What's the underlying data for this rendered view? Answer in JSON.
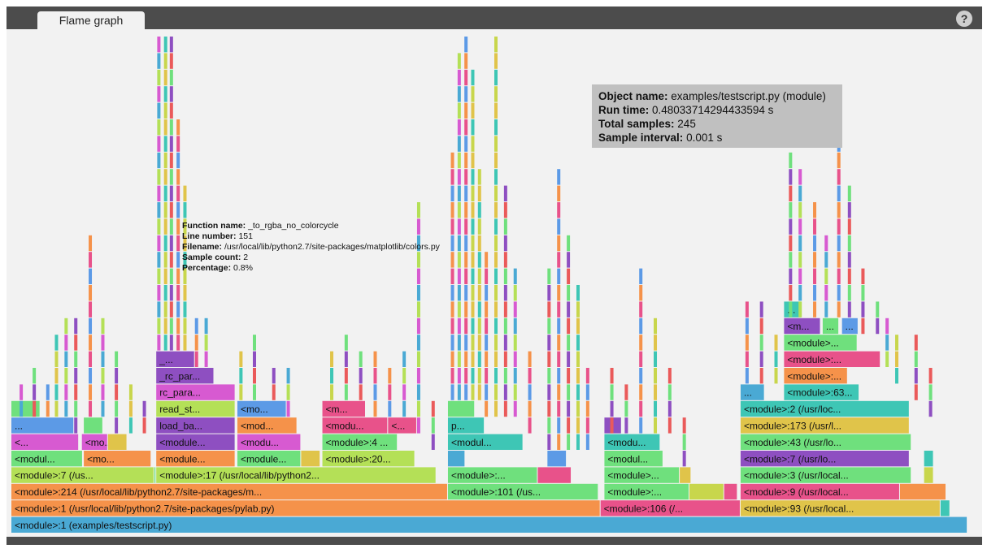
{
  "tab": {
    "label": "Flame graph"
  },
  "help": {
    "label": "?"
  },
  "info": {
    "object_name_label": "Object name:",
    "object_name": "examples/testscript.py (module)",
    "run_time_label": "Run time:",
    "run_time": "0.48033714294433594 s",
    "total_samples_label": "Total samples:",
    "total_samples": "245",
    "sample_interval_label": "Sample interval:",
    "sample_interval": "0.001 s"
  },
  "tooltip": {
    "function_name_label": "Function name:",
    "function_name": "_to_rgba_no_colorcycle",
    "line_number_label": "Line number:",
    "line_number": "151",
    "filename_label": "Filename:",
    "filename": "/usr/local/lib/python2.7/site-packages/matplotlib/colors.py",
    "sample_count_label": "Sample count:",
    "sample_count": "2",
    "percentage_label": "Percentage:",
    "percentage": "0.8%"
  },
  "colors": {
    "blue": "#4aa9d4",
    "orange": "#f5924a",
    "green": "#6fe07d",
    "yellow": "#e0c44a",
    "lime": "#b4e057",
    "pink": "#e8528a",
    "purple": "#8e4fc1",
    "teal": "#3ec6b5",
    "magenta": "#d75ad1",
    "sky": "#5c9ae6",
    "red": "#ea5a5a",
    "olive": "#c8d64c"
  },
  "frames": [
    {
      "level": 0,
      "x0": 0.0,
      "x1": 0.99,
      "color": "blue",
      "label": "<module>:1 (examples/testscript.py)"
    },
    {
      "level": 1,
      "x0": 0.0,
      "x1": 0.61,
      "color": "orange",
      "label": "<module>:1 (/usr/local/lib/python2.7/site-packages/pylab.py)"
    },
    {
      "level": 1,
      "x0": 0.61,
      "x1": 0.755,
      "color": "pink",
      "label": "<module>:106 (/..."
    },
    {
      "level": 1,
      "x0": 0.755,
      "x1": 0.962,
      "color": "yellow",
      "label": "<module>:93 (/usr/local..."
    },
    {
      "level": 1,
      "x0": 0.962,
      "x1": 0.972,
      "color": "teal",
      "label": ""
    },
    {
      "level": 2,
      "x0": 0.0,
      "x1": 0.452,
      "color": "orange",
      "label": "<module>:214 (/usr/local/lib/python2.7/site-packages/m..."
    },
    {
      "level": 2,
      "x0": 0.452,
      "x1": 0.608,
      "color": "green",
      "label": "<module>:101 (/us..."
    },
    {
      "level": 2,
      "x0": 0.614,
      "x1": 0.702,
      "color": "green",
      "label": "<module>:..."
    },
    {
      "level": 2,
      "x0": 0.702,
      "x1": 0.738,
      "color": "olive",
      "label": ""
    },
    {
      "level": 2,
      "x0": 0.738,
      "x1": 0.752,
      "color": "pink",
      "label": ""
    },
    {
      "level": 2,
      "x0": 0.755,
      "x1": 0.92,
      "color": "pink",
      "label": "<module>:9 (/usr/local..."
    },
    {
      "level": 2,
      "x0": 0.92,
      "x1": 0.968,
      "color": "orange",
      "label": ""
    },
    {
      "level": 3,
      "x0": 0.0,
      "x1": 0.148,
      "color": "lime",
      "label": "<module>:7 (/us..."
    },
    {
      "level": 3,
      "x0": 0.148,
      "x1": 0.15,
      "color": "green",
      "label": ""
    },
    {
      "level": 3,
      "x0": 0.15,
      "x1": 0.44,
      "color": "lime",
      "label": "<module>:17 (/usr/local/lib/python2..."
    },
    {
      "level": 3,
      "x0": 0.452,
      "x1": 0.545,
      "color": "green",
      "label": "<module>:..."
    },
    {
      "level": 3,
      "x0": 0.545,
      "x1": 0.58,
      "color": "pink",
      "label": ""
    },
    {
      "level": 3,
      "x0": 0.614,
      "x1": 0.692,
      "color": "green",
      "label": "<module>..."
    },
    {
      "level": 3,
      "x0": 0.692,
      "x1": 0.704,
      "color": "yellow",
      "label": ""
    },
    {
      "level": 3,
      "x0": 0.755,
      "x1": 0.932,
      "color": "green",
      "label": "<module>:3 (/usr/local..."
    },
    {
      "level": 3,
      "x0": 0.945,
      "x1": 0.955,
      "color": "olive",
      "label": ""
    },
    {
      "level": 4,
      "x0": 0.0,
      "x1": 0.074,
      "color": "green",
      "label": "<modul..."
    },
    {
      "level": 4,
      "x0": 0.075,
      "x1": 0.145,
      "color": "orange",
      "label": "<mo..."
    },
    {
      "level": 4,
      "x0": 0.15,
      "x1": 0.232,
      "color": "orange",
      "label": "<module..."
    },
    {
      "level": 4,
      "x0": 0.234,
      "x1": 0.3,
      "color": "green",
      "label": "<module..."
    },
    {
      "level": 4,
      "x0": 0.3,
      "x1": 0.32,
      "color": "yellow",
      "label": ""
    },
    {
      "level": 4,
      "x0": 0.322,
      "x1": 0.418,
      "color": "lime",
      "label": "<module>:20..."
    },
    {
      "level": 4,
      "x0": 0.452,
      "x1": 0.47,
      "color": "blue",
      "label": ""
    },
    {
      "level": 4,
      "x0": 0.555,
      "x1": 0.575,
      "color": "sky",
      "label": ""
    },
    {
      "level": 4,
      "x0": 0.614,
      "x1": 0.675,
      "color": "green",
      "label": "<modul..."
    },
    {
      "level": 4,
      "x0": 0.755,
      "x1": 0.93,
      "color": "purple",
      "label": "<module>:7 (/usr/lo..."
    },
    {
      "level": 4,
      "x0": 0.945,
      "x1": 0.955,
      "color": "teal",
      "label": ""
    },
    {
      "level": 5,
      "x0": 0.0,
      "x1": 0.07,
      "color": "magenta",
      "label": "<..."
    },
    {
      "level": 5,
      "x0": 0.073,
      "x1": 0.1,
      "color": "magenta",
      "label": "<mo..."
    },
    {
      "level": 5,
      "x0": 0.1,
      "x1": 0.12,
      "color": "yellow",
      "label": ""
    },
    {
      "level": 5,
      "x0": 0.15,
      "x1": 0.232,
      "color": "purple",
      "label": "<module..."
    },
    {
      "level": 5,
      "x0": 0.234,
      "x1": 0.3,
      "color": "magenta",
      "label": "<modu..."
    },
    {
      "level": 5,
      "x0": 0.322,
      "x1": 0.4,
      "color": "green",
      "label": "<module>:4 ..."
    },
    {
      "level": 5,
      "x0": 0.452,
      "x1": 0.53,
      "color": "teal",
      "label": "<modul..."
    },
    {
      "level": 5,
      "x0": 0.614,
      "x1": 0.672,
      "color": "teal",
      "label": "<modu..."
    },
    {
      "level": 5,
      "x0": 0.755,
      "x1": 0.932,
      "color": "green",
      "label": "<module>:43 (/usr/lo..."
    },
    {
      "level": 6,
      "x0": 0.0,
      "x1": 0.065,
      "color": "sky",
      "label": "..."
    },
    {
      "level": 6,
      "x0": 0.075,
      "x1": 0.095,
      "color": "green",
      "label": ""
    },
    {
      "level": 6,
      "x0": 0.15,
      "x1": 0.232,
      "color": "purple",
      "label": "load_ba..."
    },
    {
      "level": 6,
      "x0": 0.234,
      "x1": 0.296,
      "color": "orange",
      "label": "<mod..."
    },
    {
      "level": 6,
      "x0": 0.322,
      "x1": 0.39,
      "color": "pink",
      "label": "<modu..."
    },
    {
      "level": 6,
      "x0": 0.39,
      "x1": 0.42,
      "color": "pink",
      "label": "<..."
    },
    {
      "level": 6,
      "x0": 0.452,
      "x1": 0.49,
      "color": "teal",
      "label": "p..."
    },
    {
      "level": 6,
      "x0": 0.614,
      "x1": 0.632,
      "color": "purple",
      "label": ""
    },
    {
      "level": 6,
      "x0": 0.755,
      "x1": 0.93,
      "color": "yellow",
      "label": "<module>:173 (/usr/l..."
    },
    {
      "level": 7,
      "x0": 0.0,
      "x1": 0.03,
      "color": "green",
      "label": ""
    },
    {
      "level": 7,
      "x0": 0.15,
      "x1": 0.232,
      "color": "lime",
      "label": "read_st..."
    },
    {
      "level": 7,
      "x0": 0.234,
      "x1": 0.285,
      "color": "sky",
      "label": "<mo..."
    },
    {
      "level": 7,
      "x0": 0.322,
      "x1": 0.367,
      "color": "pink",
      "label": "<m..."
    },
    {
      "level": 7,
      "x0": 0.452,
      "x1": 0.48,
      "color": "green",
      "label": ""
    },
    {
      "level": 7,
      "x0": 0.755,
      "x1": 0.93,
      "color": "teal",
      "label": "<module>:2 (/usr/loc..."
    },
    {
      "level": 8,
      "x0": 0.15,
      "x1": 0.232,
      "color": "magenta",
      "label": "rc_para..."
    },
    {
      "level": 8,
      "x0": 0.755,
      "x1": 0.78,
      "color": "blue",
      "label": "..."
    },
    {
      "level": 8,
      "x0": 0.8,
      "x1": 0.878,
      "color": "teal",
      "label": "<module>:63..."
    },
    {
      "level": 9,
      "x0": 0.15,
      "x1": 0.21,
      "color": "purple",
      "label": "_rc_par..."
    },
    {
      "level": 9,
      "x0": 0.8,
      "x1": 0.866,
      "color": "orange",
      "label": "<module>:..."
    },
    {
      "level": 10,
      "x0": 0.15,
      "x1": 0.19,
      "color": "purple",
      "label": "_..."
    },
    {
      "level": 10,
      "x0": 0.8,
      "x1": 0.9,
      "color": "pink",
      "label": "<module>:..."
    },
    {
      "level": 11,
      "x0": 0.8,
      "x1": 0.876,
      "color": "green",
      "label": "<module>..."
    },
    {
      "level": 12,
      "x0": 0.8,
      "x1": 0.838,
      "color": "purple",
      "label": "<m..."
    },
    {
      "level": 12,
      "x0": 0.84,
      "x1": 0.857,
      "color": "green",
      "label": "..."
    },
    {
      "level": 12,
      "x0": 0.86,
      "x1": 0.877,
      "color": "sky",
      "label": "..."
    },
    {
      "level": 13,
      "x0": 0.8,
      "x1": 0.818,
      "color": "teal",
      "label": "..."
    }
  ],
  "towers": [
    {
      "x": 0.0085,
      "base": 7,
      "h": 2
    },
    {
      "x": 0.022,
      "base": 7,
      "h": 3
    },
    {
      "x": 0.036,
      "base": 7,
      "h": 2
    },
    {
      "x": 0.045,
      "base": 7,
      "h": 5
    },
    {
      "x": 0.055,
      "base": 7,
      "h": 6
    },
    {
      "x": 0.065,
      "base": 6,
      "h": 7
    },
    {
      "x": 0.08,
      "base": 7,
      "h": 11
    },
    {
      "x": 0.093,
      "base": 7,
      "h": 6
    },
    {
      "x": 0.107,
      "base": 6,
      "h": 5
    },
    {
      "x": 0.122,
      "base": 6,
      "h": 3
    },
    {
      "x": 0.136,
      "base": 6,
      "h": 2
    },
    {
      "x": 0.151,
      "base": 11,
      "h": 29
    },
    {
      "x": 0.158,
      "base": 11,
      "h": 26
    },
    {
      "x": 0.164,
      "base": 11,
      "h": 26
    },
    {
      "x": 0.171,
      "base": 11,
      "h": 14
    },
    {
      "x": 0.178,
      "base": 11,
      "h": 10
    },
    {
      "x": 0.19,
      "base": 10,
      "h": 3
    },
    {
      "x": 0.2,
      "base": 10,
      "h": 3
    },
    {
      "x": 0.236,
      "base": 8,
      "h": 3
    },
    {
      "x": 0.25,
      "base": 8,
      "h": 4
    },
    {
      "x": 0.27,
      "base": 8,
      "h": 2
    },
    {
      "x": 0.285,
      "base": 7,
      "h": 3
    },
    {
      "x": 0.33,
      "base": 8,
      "h": 3
    },
    {
      "x": 0.345,
      "base": 8,
      "h": 4
    },
    {
      "x": 0.36,
      "base": 8,
      "h": 3
    },
    {
      "x": 0.375,
      "base": 7,
      "h": 4
    },
    {
      "x": 0.39,
      "base": 7,
      "h": 3
    },
    {
      "x": 0.405,
      "base": 7,
      "h": 4
    },
    {
      "x": 0.42,
      "base": 6,
      "h": 14
    },
    {
      "x": 0.435,
      "base": 5,
      "h": 3
    },
    {
      "x": 0.455,
      "base": 8,
      "h": 15
    },
    {
      "x": 0.462,
      "base": 8,
      "h": 21
    },
    {
      "x": 0.469,
      "base": 8,
      "h": 26
    },
    {
      "x": 0.476,
      "base": 8,
      "h": 20
    },
    {
      "x": 0.483,
      "base": 8,
      "h": 14
    },
    {
      "x": 0.49,
      "base": 7,
      "h": 10
    },
    {
      "x": 0.5,
      "base": 7,
      "h": 23
    },
    {
      "x": 0.51,
      "base": 7,
      "h": 14
    },
    {
      "x": 0.52,
      "base": 7,
      "h": 9
    },
    {
      "x": 0.535,
      "base": 6,
      "h": 5
    },
    {
      "x": 0.555,
      "base": 5,
      "h": 11
    },
    {
      "x": 0.565,
      "base": 5,
      "h": 17
    },
    {
      "x": 0.575,
      "base": 5,
      "h": 13
    },
    {
      "x": 0.585,
      "base": 5,
      "h": 10
    },
    {
      "x": 0.595,
      "base": 5,
      "h": 5
    },
    {
      "x": 0.62,
      "base": 6,
      "h": 4
    },
    {
      "x": 0.635,
      "base": 6,
      "h": 3
    },
    {
      "x": 0.65,
      "base": 6,
      "h": 10
    },
    {
      "x": 0.665,
      "base": 6,
      "h": 7
    },
    {
      "x": 0.68,
      "base": 6,
      "h": 4
    },
    {
      "x": 0.695,
      "base": 4,
      "h": 3
    },
    {
      "x": 0.76,
      "base": 9,
      "h": 5
    },
    {
      "x": 0.775,
      "base": 9,
      "h": 5
    },
    {
      "x": 0.79,
      "base": 9,
      "h": 3
    },
    {
      "x": 0.805,
      "base": 13,
      "h": 10
    },
    {
      "x": 0.815,
      "base": 13,
      "h": 9
    },
    {
      "x": 0.83,
      "base": 13,
      "h": 7
    },
    {
      "x": 0.842,
      "base": 13,
      "h": 5
    },
    {
      "x": 0.855,
      "base": 13,
      "h": 13
    },
    {
      "x": 0.866,
      "base": 13,
      "h": 8
    },
    {
      "x": 0.88,
      "base": 12,
      "h": 4
    },
    {
      "x": 0.895,
      "base": 12,
      "h": 2
    },
    {
      "x": 0.905,
      "base": 10,
      "h": 3
    },
    {
      "x": 0.915,
      "base": 9,
      "h": 3
    },
    {
      "x": 0.935,
      "base": 8,
      "h": 4
    },
    {
      "x": 0.95,
      "base": 7,
      "h": 3
    }
  ]
}
